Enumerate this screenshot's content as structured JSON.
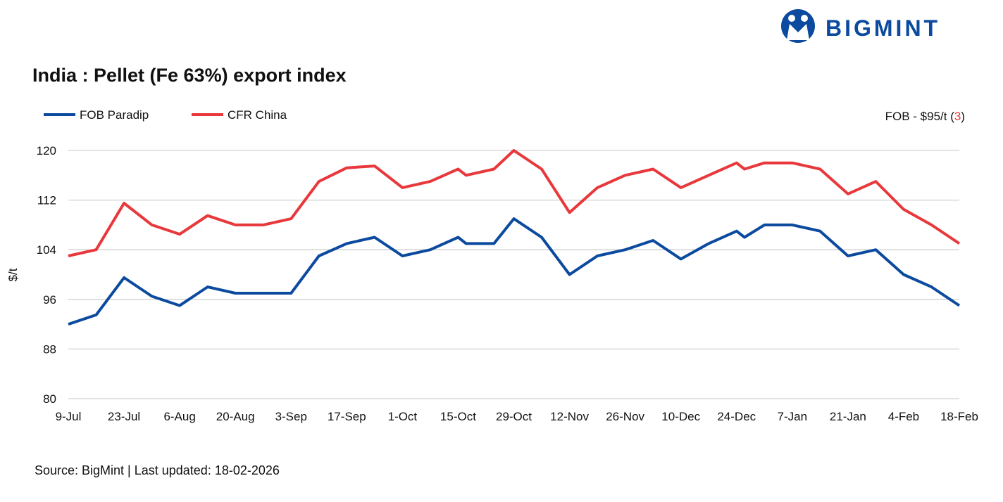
{
  "brand": "BIGMINT",
  "chart_data": {
    "type": "line",
    "title": "India : Pellet (Fe 63%) export index",
    "y_label": "$/t",
    "annotation": {
      "prefix": "FOB - $95/t (",
      "change": "3",
      "suffix": ")"
    },
    "source": "Source: BigMint | Last updated: 18-02-2026",
    "x": [
      "9-Jul",
      "16-Jul",
      "23-Jul",
      "30-Jul",
      "6-Aug",
      "13-Aug",
      "20-Aug",
      "27-Aug",
      "3-Sep",
      "10-Sep",
      "17-Sep",
      "24-Sep",
      "1-Oct",
      "8-Oct",
      "15-Oct",
      "17-Oct",
      "24-Oct",
      "29-Oct",
      "5-Nov",
      "12-Nov",
      "19-Nov",
      "26-Nov",
      "3-Dec",
      "10-Dec",
      "17-Dec",
      "24-Dec",
      "26-Dec",
      "31-Dec",
      "7-Jan",
      "14-Jan",
      "21-Jan",
      "28-Jan",
      "4-Feb",
      "11-Feb",
      "18-Feb"
    ],
    "xlim": [
      "9-Jul",
      "18-Feb"
    ],
    "xticks": [
      "9-Jul",
      "23-Jul",
      "6-Aug",
      "20-Aug",
      "3-Sep",
      "17-Sep",
      "1-Oct",
      "15-Oct",
      "29-Oct",
      "12-Nov",
      "26-Nov",
      "10-Dec",
      "24-Dec",
      "7-Jan",
      "21-Jan",
      "4-Feb",
      "18-Feb"
    ],
    "ylim": [
      80,
      120
    ],
    "yticks": [
      80,
      88,
      96,
      104,
      112,
      120
    ],
    "grid": true,
    "series": [
      {
        "name": "FOB Paradip",
        "color": "#0b4a9e",
        "values": [
          92,
          93.5,
          99.5,
          96.5,
          95,
          98,
          97,
          97,
          97,
          103,
          105,
          106,
          103,
          104,
          106,
          105,
          105,
          109,
          106,
          100,
          103,
          104,
          105.5,
          102.5,
          105,
          107,
          106,
          108,
          108,
          107,
          103,
          104,
          100,
          98,
          95
        ]
      },
      {
        "name": "CFR China",
        "color": "#e8383b",
        "values": [
          103,
          104,
          111.5,
          108,
          106.5,
          109.5,
          108,
          108,
          109,
          115,
          117.2,
          117.5,
          114,
          115,
          117,
          116,
          117,
          120,
          117,
          110,
          114,
          116,
          117,
          114,
          116,
          118,
          117,
          118,
          118,
          117,
          113,
          115,
          110.5,
          108,
          105
        ]
      }
    ]
  }
}
